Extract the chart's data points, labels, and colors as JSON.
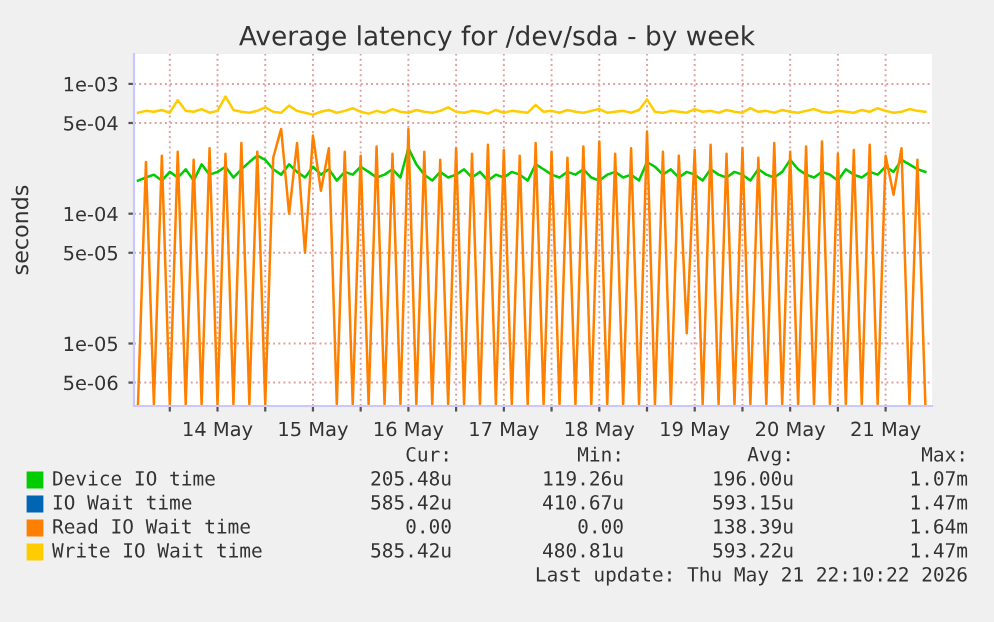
{
  "chart_data": {
    "type": "line",
    "title": "Average latency for /dev/sda - by week",
    "ylabel": "seconds",
    "log": "y",
    "grid": true,
    "legend": "bottom",
    "xlim": [
      "2026-05-13T15:00",
      "2026-05-21T23:40"
    ],
    "xticks": [
      {
        "value": "2026-05-14T00:00",
        "label": null
      },
      {
        "value": "2026-05-14T12:00",
        "label": "14 May"
      },
      {
        "value": "2026-05-15T00:00",
        "label": null
      },
      {
        "value": "2026-05-15T12:00",
        "label": "15 May"
      },
      {
        "value": "2026-05-16T00:00",
        "label": null
      },
      {
        "value": "2026-05-16T12:00",
        "label": "16 May"
      },
      {
        "value": "2026-05-17T00:00",
        "label": null
      },
      {
        "value": "2026-05-17T12:00",
        "label": "17 May"
      },
      {
        "value": "2026-05-18T00:00",
        "label": null
      },
      {
        "value": "2026-05-18T12:00",
        "label": "18 May"
      },
      {
        "value": "2026-05-19T00:00",
        "label": null
      },
      {
        "value": "2026-05-19T12:00",
        "label": "19 May"
      },
      {
        "value": "2026-05-20T00:00",
        "label": null
      },
      {
        "value": "2026-05-20T12:00",
        "label": "20 May"
      },
      {
        "value": "2026-05-21T00:00",
        "label": null
      },
      {
        "value": "2026-05-21T12:00",
        "label": "21 May"
      }
    ],
    "ylim": [
      3.3e-06,
      0.0017
    ],
    "yticks": [
      {
        "value": 5e-06,
        "label": "5e-06"
      },
      {
        "value": 1e-05,
        "label": "1e-05"
      },
      {
        "value": 5e-05,
        "label": "5e-05"
      },
      {
        "value": 0.0001,
        "label": "1e-04"
      },
      {
        "value": 0.0005,
        "label": "5e-04"
      },
      {
        "value": 0.001,
        "label": "1e-03"
      }
    ],
    "x": [
      "2026-05-13T16:00",
      "2026-05-13T18:00",
      "2026-05-13T20:00",
      "2026-05-13T22:00",
      "2026-05-14T00:00",
      "2026-05-14T02:00",
      "2026-05-14T04:00",
      "2026-05-14T06:00",
      "2026-05-14T08:00",
      "2026-05-14T10:00",
      "2026-05-14T12:00",
      "2026-05-14T14:00",
      "2026-05-14T16:00",
      "2026-05-14T18:00",
      "2026-05-14T20:00",
      "2026-05-14T22:00",
      "2026-05-15T00:00",
      "2026-05-15T02:00",
      "2026-05-15T04:00",
      "2026-05-15T06:00",
      "2026-05-15T08:00",
      "2026-05-15T10:00",
      "2026-05-15T12:00",
      "2026-05-15T14:00",
      "2026-05-15T16:00",
      "2026-05-15T18:00",
      "2026-05-15T20:00",
      "2026-05-15T22:00",
      "2026-05-16T00:00",
      "2026-05-16T02:00",
      "2026-05-16T04:00",
      "2026-05-16T06:00",
      "2026-05-16T08:00",
      "2026-05-16T10:00",
      "2026-05-16T12:00",
      "2026-05-16T14:00",
      "2026-05-16T16:00",
      "2026-05-16T18:00",
      "2026-05-16T20:00",
      "2026-05-16T22:00",
      "2026-05-17T00:00",
      "2026-05-17T02:00",
      "2026-05-17T04:00",
      "2026-05-17T06:00",
      "2026-05-17T08:00",
      "2026-05-17T10:00",
      "2026-05-17T12:00",
      "2026-05-17T14:00",
      "2026-05-17T16:00",
      "2026-05-17T18:00",
      "2026-05-17T20:00",
      "2026-05-17T22:00",
      "2026-05-18T00:00",
      "2026-05-18T02:00",
      "2026-05-18T04:00",
      "2026-05-18T06:00",
      "2026-05-18T08:00",
      "2026-05-18T10:00",
      "2026-05-18T12:00",
      "2026-05-18T14:00",
      "2026-05-18T16:00",
      "2026-05-18T18:00",
      "2026-05-18T20:00",
      "2026-05-18T22:00",
      "2026-05-19T00:00",
      "2026-05-19T02:00",
      "2026-05-19T04:00",
      "2026-05-19T06:00",
      "2026-05-19T08:00",
      "2026-05-19T10:00",
      "2026-05-19T12:00",
      "2026-05-19T14:00",
      "2026-05-19T16:00",
      "2026-05-19T18:00",
      "2026-05-19T20:00",
      "2026-05-19T22:00",
      "2026-05-20T00:00",
      "2026-05-20T02:00",
      "2026-05-20T04:00",
      "2026-05-20T06:00",
      "2026-05-20T08:00",
      "2026-05-20T10:00",
      "2026-05-20T12:00",
      "2026-05-20T14:00",
      "2026-05-20T16:00",
      "2026-05-20T18:00",
      "2026-05-20T20:00",
      "2026-05-20T22:00",
      "2026-05-21T00:00",
      "2026-05-21T02:00",
      "2026-05-21T04:00",
      "2026-05-21T06:00",
      "2026-05-21T08:00",
      "2026-05-21T10:00",
      "2026-05-21T12:00",
      "2026-05-21T14:00",
      "2026-05-21T16:00",
      "2026-05-21T18:00",
      "2026-05-21T20:00",
      "2026-05-21T22:00"
    ],
    "series": [
      {
        "name": "Device IO time",
        "color": "#00cc00",
        "values": [
          0.00018,
          0.00019,
          0.0002,
          0.00018,
          0.00021,
          0.00019,
          0.00022,
          0.00018,
          0.00024,
          0.0002,
          0.00021,
          0.00023,
          0.00019,
          0.00022,
          0.00025,
          0.00028,
          0.00026,
          0.00022,
          0.0002,
          0.00024,
          0.00021,
          0.00019,
          0.00023,
          0.0002,
          0.00022,
          0.00018,
          0.00021,
          0.0002,
          0.00023,
          0.00021,
          0.00019,
          0.0002,
          0.00022,
          0.00019,
          0.00032,
          0.00024,
          0.0002,
          0.00018,
          0.00021,
          0.00019,
          0.0002,
          0.00022,
          0.00019,
          0.00021,
          0.00018,
          0.0002,
          0.00019,
          0.00021,
          0.0002,
          0.00018,
          0.00024,
          0.00022,
          0.0002,
          0.00019,
          0.00021,
          0.0002,
          0.00022,
          0.00019,
          0.00018,
          0.0002,
          0.00021,
          0.00019,
          0.0002,
          0.00018,
          0.00025,
          0.00023,
          0.0002,
          0.00022,
          0.00019,
          0.00021,
          0.0002,
          0.00018,
          0.00022,
          0.0002,
          0.00019,
          0.00021,
          0.0002,
          0.00018,
          0.00022,
          0.0002,
          0.00019,
          0.00021,
          0.00026,
          0.00022,
          0.0002,
          0.00019,
          0.00021,
          0.0002,
          0.00018,
          0.00022,
          0.0002,
          0.00019,
          0.00021,
          0.0002,
          0.00023,
          0.00021,
          0.00026,
          0.00024,
          0.00022,
          0.00021
        ]
      },
      {
        "name": "IO Wait time",
        "color": "#0066b3",
        "values": [
          null,
          null,
          null,
          null,
          null,
          null,
          null,
          null,
          null,
          null,
          null,
          null,
          null,
          null,
          null,
          null,
          null,
          null,
          null,
          null,
          null,
          null,
          null,
          null,
          null,
          null,
          null,
          null,
          null,
          null,
          null,
          null,
          null,
          null,
          null,
          null,
          null,
          null,
          null,
          null,
          null,
          null,
          null,
          null,
          null,
          null,
          null,
          null,
          null,
          null,
          null,
          null,
          null,
          null,
          null,
          null,
          null,
          null,
          null,
          null,
          null,
          null,
          null,
          null,
          null,
          null,
          null,
          null,
          null,
          null,
          null,
          null,
          null,
          null,
          null,
          null,
          null,
          null,
          null,
          null,
          null,
          null,
          null,
          null,
          null,
          null,
          null,
          null,
          null,
          null,
          null,
          null,
          null,
          null,
          null,
          null,
          null,
          null,
          null,
          null
        ]
      },
      {
        "name": "Read IO Wait time",
        "color": "#ff8000",
        "values": [
          3.4e-06,
          0.00025,
          3.4e-06,
          0.00028,
          3.4e-06,
          0.0003,
          3.4e-06,
          0.00026,
          3.4e-06,
          0.00032,
          3.4e-06,
          0.00029,
          3.4e-06,
          0.00035,
          3.4e-06,
          0.0003,
          3.4e-06,
          0.00027,
          0.00045,
          0.0001,
          0.00035,
          5e-05,
          0.0004,
          0.00015,
          0.00032,
          3.4e-06,
          0.0003,
          3.4e-06,
          0.00028,
          3.4e-06,
          0.00033,
          3.4e-06,
          0.00029,
          3.4e-06,
          0.00045,
          3.4e-06,
          0.0003,
          3.4e-06,
          0.00026,
          3.4e-06,
          0.00032,
          3.4e-06,
          0.00029,
          3.4e-06,
          0.00034,
          3.4e-06,
          0.00031,
          3.4e-06,
          0.00028,
          3.4e-06,
          0.00035,
          3.4e-06,
          0.0003,
          3.4e-06,
          0.00027,
          3.4e-06,
          0.00033,
          3.4e-06,
          0.00036,
          3.4e-06,
          0.00029,
          3.4e-06,
          0.00032,
          3.4e-06,
          0.00043,
          3.4e-06,
          0.0003,
          3.4e-06,
          0.00028,
          1.2e-05,
          0.00031,
          3.4e-06,
          0.00034,
          3.4e-06,
          0.00029,
          3.4e-06,
          0.00032,
          3.4e-06,
          0.00027,
          3.4e-06,
          0.00035,
          3.4e-06,
          0.0003,
          3.4e-06,
          0.00033,
          3.4e-06,
          0.00036,
          3.4e-06,
          0.00029,
          3.4e-06,
          0.00031,
          3.4e-06,
          0.00034,
          3.4e-06,
          0.00028,
          0.00014,
          0.00032,
          3.4e-06,
          0.00026,
          3.4e-06
        ]
      },
      {
        "name": "Write IO Wait time",
        "color": "#ffcc00",
        "values": [
          0.0006,
          0.00062,
          0.00061,
          0.00063,
          0.0006,
          0.00075,
          0.00062,
          0.00061,
          0.00064,
          0.0006,
          0.00062,
          0.0008,
          0.00063,
          0.00061,
          0.0006,
          0.00062,
          0.00066,
          0.00061,
          0.0006,
          0.00068,
          0.00062,
          0.0006,
          0.00058,
          0.00061,
          0.00063,
          0.0006,
          0.00062,
          0.00065,
          0.00061,
          0.00059,
          0.00062,
          0.0006,
          0.00064,
          0.00061,
          0.0006,
          0.00063,
          0.00061,
          0.0006,
          0.00062,
          0.00066,
          0.00061,
          0.0006,
          0.00062,
          0.00061,
          0.00059,
          0.00063,
          0.0006,
          0.00062,
          0.00061,
          0.0006,
          0.00069,
          0.00061,
          0.00062,
          0.0006,
          0.00063,
          0.00061,
          0.0006,
          0.00062,
          0.00064,
          0.0006,
          0.00061,
          0.00062,
          0.0006,
          0.00063,
          0.00076,
          0.00061,
          0.0006,
          0.00062,
          0.00061,
          0.0006,
          0.00064,
          0.00061,
          0.00062,
          0.0006,
          0.00063,
          0.00061,
          0.0006,
          0.00065,
          0.00061,
          0.00062,
          0.0006,
          0.00063,
          0.00061,
          0.0006,
          0.00062,
          0.00064,
          0.00061,
          0.0006,
          0.00062,
          0.00061,
          0.0006,
          0.00063,
          0.00061,
          0.00065,
          0.00062,
          0.0006,
          0.00061,
          0.00064,
          0.00062,
          0.00061
        ]
      }
    ],
    "annotations": [
      "Cur:",
      "Min:",
      "Avg:",
      "Max:",
      "205.48u",
      "119.26u",
      "196.00u",
      "1.07m",
      "585.42u",
      "410.67u",
      "593.15u",
      "1.47m",
      "0.00",
      "0.00",
      "138.39u",
      "1.64m",
      "585.42u",
      "480.81u",
      "593.22u",
      "1.47m",
      "Last update: Thu May 21 22:10:22 2026"
    ]
  }
}
